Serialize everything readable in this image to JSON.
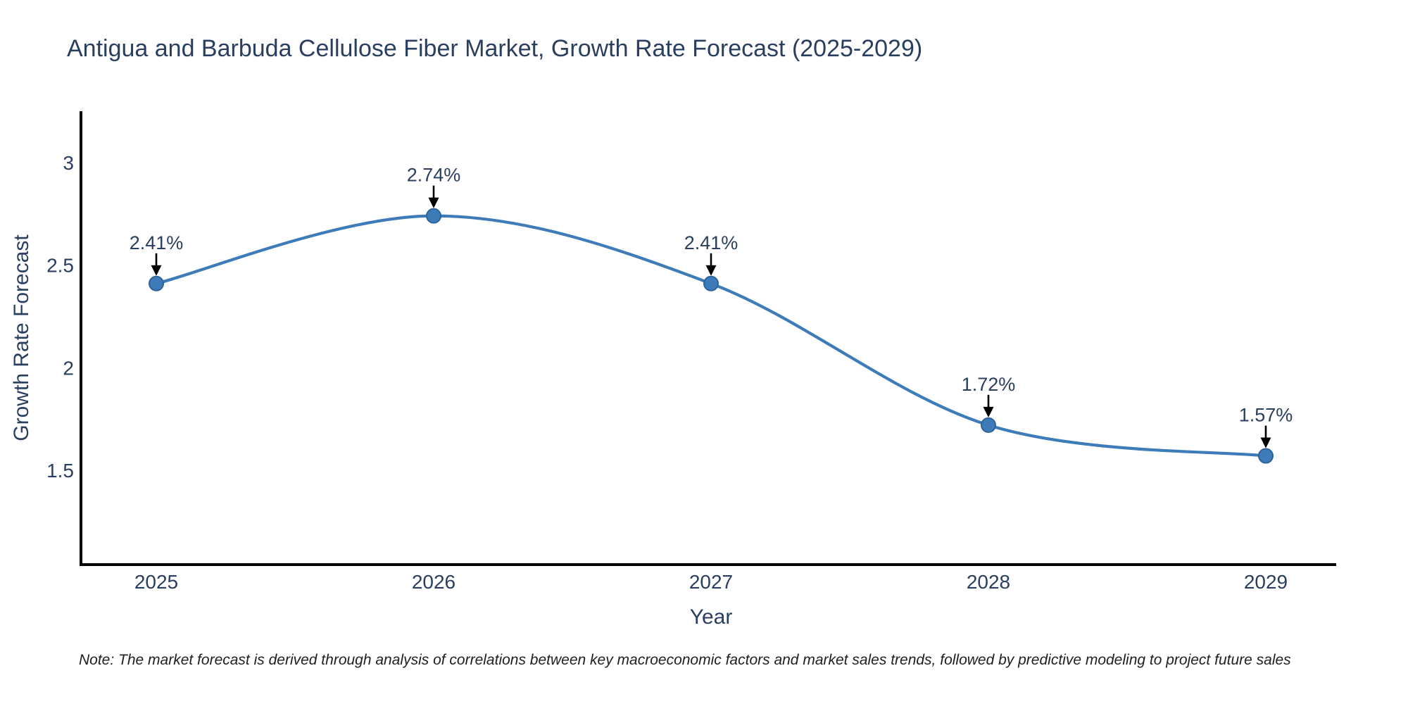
{
  "title": "Antigua and Barbuda Cellulose Fiber Market, Growth Rate Forecast (2025-2029)",
  "note": "Note: The market forecast is derived through analysis of correlations between key macroeconomic factors and market sales trends, followed by predictive modeling to project future sales",
  "chart_data": {
    "type": "line",
    "line_shape": "spline",
    "title": "Antigua and Barbuda Cellulose Fiber Market, Growth Rate Forecast (2025-2029)",
    "xlabel": "Year",
    "ylabel": "Growth Rate Forecast",
    "x": [
      "2025",
      "2026",
      "2027",
      "2028",
      "2029"
    ],
    "series": [
      {
        "name": "Growth Rate Forecast",
        "values": [
          2.41,
          2.74,
          2.41,
          1.72,
          1.57
        ]
      }
    ],
    "point_labels": [
      "2.41%",
      "2.74%",
      "2.41%",
      "1.72%",
      "1.57%"
    ],
    "yticks": [
      1.5,
      2,
      2.5,
      3
    ],
    "ylim": [
      1.04,
      3.25
    ],
    "grid": false,
    "legend": false,
    "markers": true,
    "annotation_arrows": true,
    "colors": {
      "line": "#3d7cb8",
      "marker_fill": "#3d7cb8",
      "marker_edge": "#2d629b",
      "axis": "#000000",
      "arrow": "#000000",
      "label_text": "#2a3f5f",
      "note_text": "#202020",
      "background": "#ffffff"
    }
  }
}
